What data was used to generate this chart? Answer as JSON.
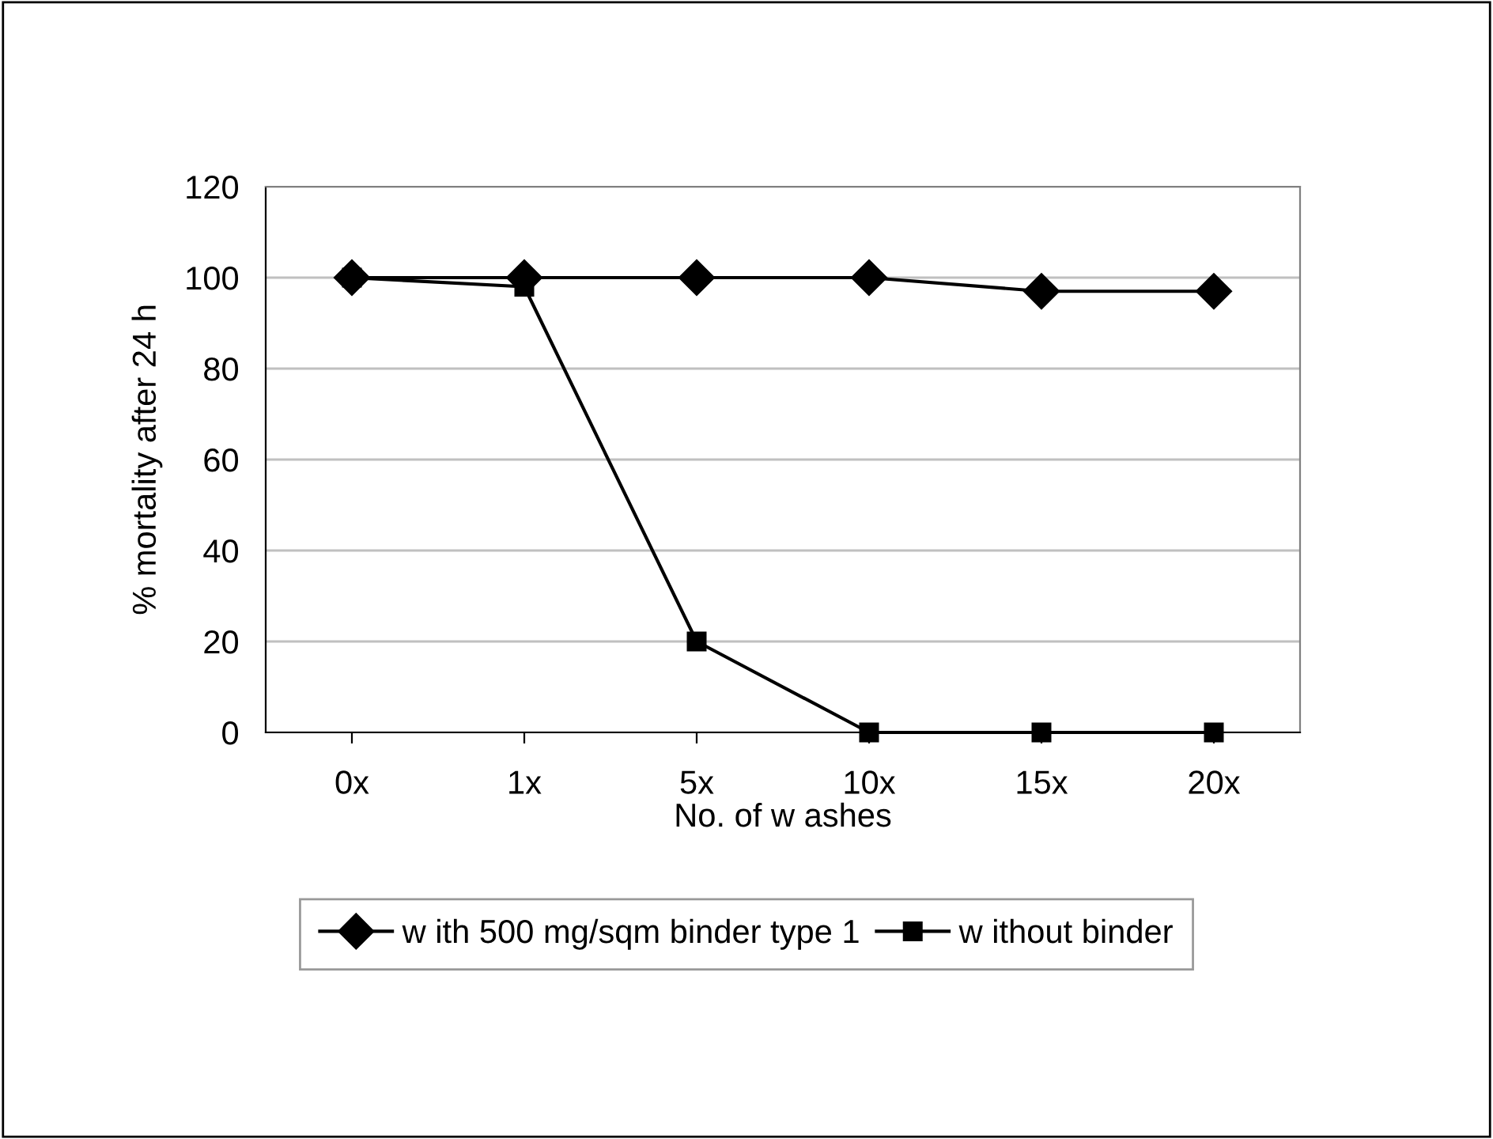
{
  "chart_data": {
    "type": "line",
    "xlabel": "No. of w ashes",
    "ylabel": "% mortality after 24 h",
    "categories": [
      "0x",
      "1x",
      "5x",
      "10x",
      "15x",
      "20x"
    ],
    "series": [
      {
        "name": "w ith 500 mg/sqm binder type 1",
        "color": "#000000",
        "marker": "diamond",
        "values": [
          100,
          100,
          100,
          100,
          97,
          97
        ]
      },
      {
        "name": "w ithout binder",
        "color": "#000000",
        "marker": "square",
        "values": [
          100,
          98,
          20,
          0,
          0,
          0
        ]
      }
    ],
    "ylim": [
      0,
      120
    ],
    "yticks": [
      0,
      20,
      40,
      60,
      80,
      100,
      120
    ],
    "grid": "y",
    "legend": "bottom",
    "line_style": "solid"
  }
}
